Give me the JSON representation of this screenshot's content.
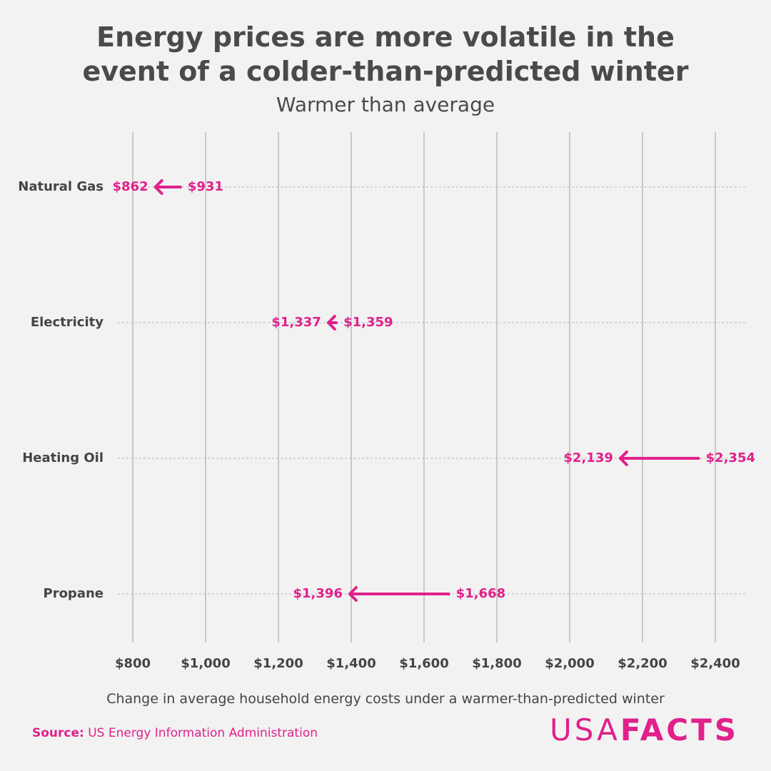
{
  "chart_data": {
    "type": "arrow",
    "title": "Energy prices are more volatile in the event of a colder-than-predicted winter",
    "subtitle": "Warmer than average",
    "x_label": "Change in average household energy costs under a warmer-than-predicted winter",
    "categories": [
      "Natural Gas",
      "Electricity",
      "Heating Oil",
      "Propane"
    ],
    "series": [
      {
        "values": [
          931,
          1359,
          2354,
          1668
        ],
        "value_labels": [
          "$931",
          "$1,359",
          "$2,354",
          "$1,668"
        ],
        "color": "#e0218a"
      },
      {
        "values": [
          862,
          1337,
          2139,
          1396
        ],
        "value_labels": [
          "$862",
          "$1,337",
          "$2,139",
          "$1,396"
        ],
        "color": "#e0218a"
      }
    ],
    "xlim": [
      800,
      2400
    ],
    "xticks": [
      {
        "value": 800,
        "label": "$800"
      },
      {
        "value": 1000,
        "label": "$1,000"
      },
      {
        "value": 1200,
        "label": "$1,200"
      },
      {
        "value": 1400,
        "label": "$1,400"
      },
      {
        "value": 1600,
        "label": "$1,600"
      },
      {
        "value": 1800,
        "label": "$1,800"
      },
      {
        "value": 2000,
        "label": "$2,000"
      },
      {
        "value": 2200,
        "label": "$2,200"
      },
      {
        "value": 2400,
        "label": "$2,400"
      }
    ],
    "grid": true
  },
  "footer": {
    "source_label": "Source:",
    "source": "US Energy Information Administration",
    "logo_light": "USA",
    "logo_bold": "FACTS"
  }
}
